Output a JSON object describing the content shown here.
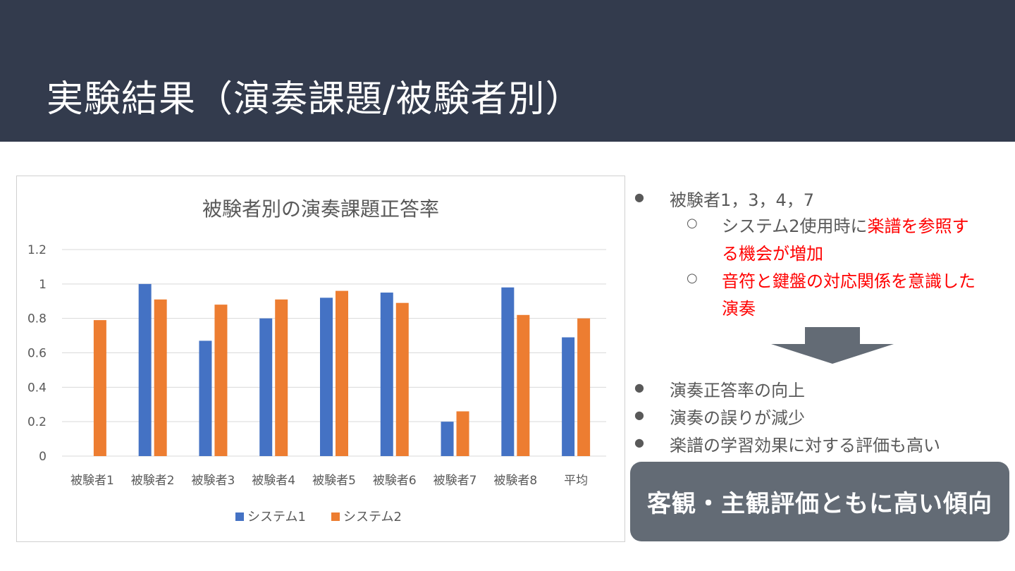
{
  "slide": {
    "title": "実験結果（演奏課題/被験者別）"
  },
  "bullets_top": {
    "main": "被験者1，3，4，7",
    "sub1_prefix": "システム2使用時に",
    "sub1_red_a": "楽譜を参照す",
    "sub1_red_b": "る機会が増加",
    "sub2_red_a": "音符と鍵盤の対応関係を意識した",
    "sub2_red_b": "演奏"
  },
  "bullets_bottom": [
    "演奏正答率の向上",
    "演奏の誤りが減少",
    "楽譜の学習効果に対する評価も高い"
  ],
  "callout": "客観・主観評価ともに高い傾向",
  "icons": {
    "arrow": "arrow-down-icon",
    "bullet": "bullet-dot-icon",
    "sub_bullet": "circle-bullet-icon"
  },
  "colors": {
    "header": "#333b4d",
    "system1": "#4472c4",
    "system2": "#ed7d31",
    "emphasis": "#ff0000",
    "callout": "#636b75"
  },
  "chart_data": {
    "type": "bar",
    "title": "被験者別の演奏課題正答率",
    "categories": [
      "被験者1",
      "被験者2",
      "被験者3",
      "被験者4",
      "被験者5",
      "被験者6",
      "被験者7",
      "被験者8",
      "平均"
    ],
    "series": [
      {
        "name": "システム1",
        "color": "#4472c4",
        "values": [
          0,
          1.0,
          0.67,
          0.8,
          0.92,
          0.95,
          0.2,
          0.98,
          0.69
        ]
      },
      {
        "name": "システム2",
        "color": "#ed7d31",
        "values": [
          0.79,
          0.91,
          0.88,
          0.91,
          0.96,
          0.89,
          0.26,
          0.82,
          0.8
        ]
      }
    ],
    "yticks": [
      "0",
      "0.2",
      "0.4",
      "0.6",
      "0.8",
      "1",
      "1.2"
    ],
    "ylim": [
      0,
      1.2
    ],
    "grid": true,
    "legend": "bottom"
  }
}
